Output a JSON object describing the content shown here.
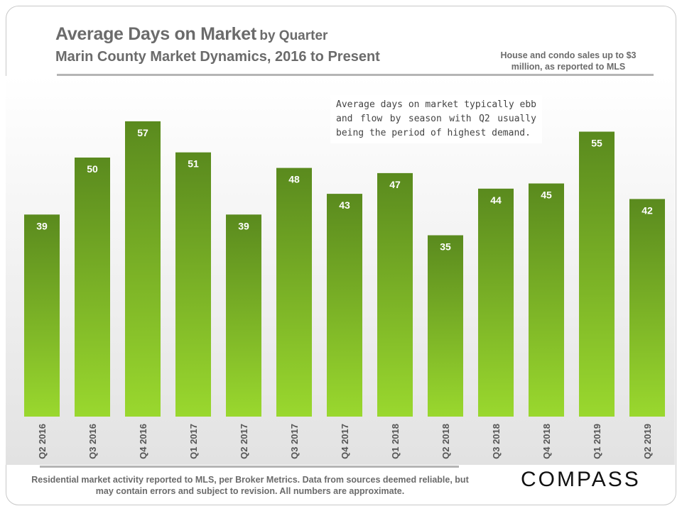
{
  "header": {
    "title_main": "Average Days on Market",
    "title_suffix": "by Quarter",
    "subtitle": "Marin County Market Dynamics, 2016 to Present",
    "scope_note": "House and condo sales up to $3 million, as reported to MLS"
  },
  "annotation": "Average days on market typically ebb and flow by season with Q2 usually being the period of highest demand.",
  "footer": {
    "note": "Residential market activity reported to MLS, per Broker Metrics. Data from sources deemed reliable, but may contain errors and subject to revision. All numbers are approximate.",
    "logo_text": "COMPASS"
  },
  "chart_data": {
    "type": "bar",
    "categories": [
      "Q2 2016",
      "Q3 2016",
      "Q4 2016",
      "Q1 2017",
      "Q2 2017",
      "Q3 2017",
      "Q4 2017",
      "Q1 2018",
      "Q2 2018",
      "Q3 2018",
      "Q4 2018",
      "Q1 2019",
      "Q2 2019"
    ],
    "values": [
      39,
      50,
      57,
      51,
      39,
      48,
      43,
      47,
      35,
      44,
      45,
      55,
      42
    ],
    "title": "Average Days on Market by Quarter",
    "xlabel": "",
    "ylabel": "",
    "ylim": [
      0,
      60
    ],
    "grid": false,
    "data_labels": true,
    "colors": {
      "bar_top": "#5a8a1e",
      "bar_bottom": "#9ad82e",
      "label": "#ffffff"
    }
  }
}
